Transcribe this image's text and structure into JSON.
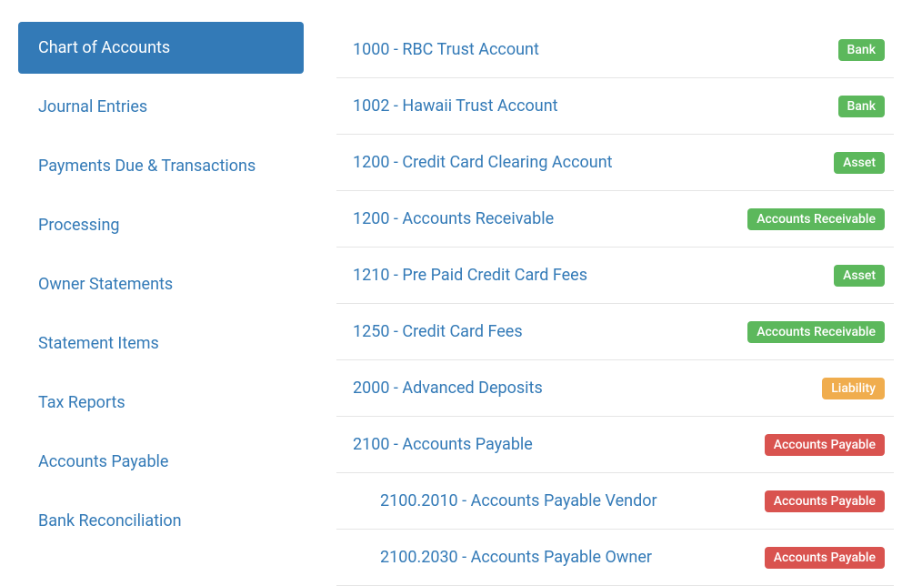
{
  "colors": {
    "link": "#337ab7",
    "active_bg": "#337ab7",
    "active_text": "#ffffff",
    "row_border": "#e5e5e5",
    "badge_green": "#5cb85c",
    "badge_yellow": "#f0ad4e",
    "badge_red": "#d9534f"
  },
  "sidebar": {
    "items": [
      {
        "label": "Chart of Accounts",
        "active": true
      },
      {
        "label": "Journal Entries",
        "active": false
      },
      {
        "label": "Payments Due & Transactions",
        "active": false
      },
      {
        "label": "Processing",
        "active": false
      },
      {
        "label": "Owner Statements",
        "active": false
      },
      {
        "label": "Statement Items",
        "active": false
      },
      {
        "label": "Tax Reports",
        "active": false
      },
      {
        "label": "Accounts Payable",
        "active": false
      },
      {
        "label": "Bank Reconciliation",
        "active": false
      }
    ]
  },
  "badge_types": {
    "Bank": {
      "color_key": "badge_green"
    },
    "Asset": {
      "color_key": "badge_green"
    },
    "Accounts Receivable": {
      "color_key": "badge_green"
    },
    "Liability": {
      "color_key": "badge_yellow"
    },
    "Accounts Payable": {
      "color_key": "badge_red"
    }
  },
  "accounts": [
    {
      "name": "1000 - RBC Trust Account",
      "badge": "Bank",
      "indent": 0
    },
    {
      "name": "1002 - Hawaii Trust Account",
      "badge": "Bank",
      "indent": 0
    },
    {
      "name": "1200 - Credit Card Clearing Account",
      "badge": "Asset",
      "indent": 0
    },
    {
      "name": "1200 - Accounts Receivable",
      "badge": "Accounts Receivable",
      "indent": 0
    },
    {
      "name": "1210 - Pre Paid Credit Card Fees",
      "badge": "Asset",
      "indent": 0
    },
    {
      "name": "1250 - Credit Card Fees",
      "badge": "Accounts Receivable",
      "indent": 0
    },
    {
      "name": "2000 - Advanced Deposits",
      "badge": "Liability",
      "indent": 0
    },
    {
      "name": "2100 - Accounts Payable",
      "badge": "Accounts Payable",
      "indent": 0
    },
    {
      "name": "2100.2010 - Accounts Payable Vendor",
      "badge": "Accounts Payable",
      "indent": 1
    },
    {
      "name": "2100.2030 - Accounts Payable Owner",
      "badge": "Accounts Payable",
      "indent": 1
    }
  ]
}
